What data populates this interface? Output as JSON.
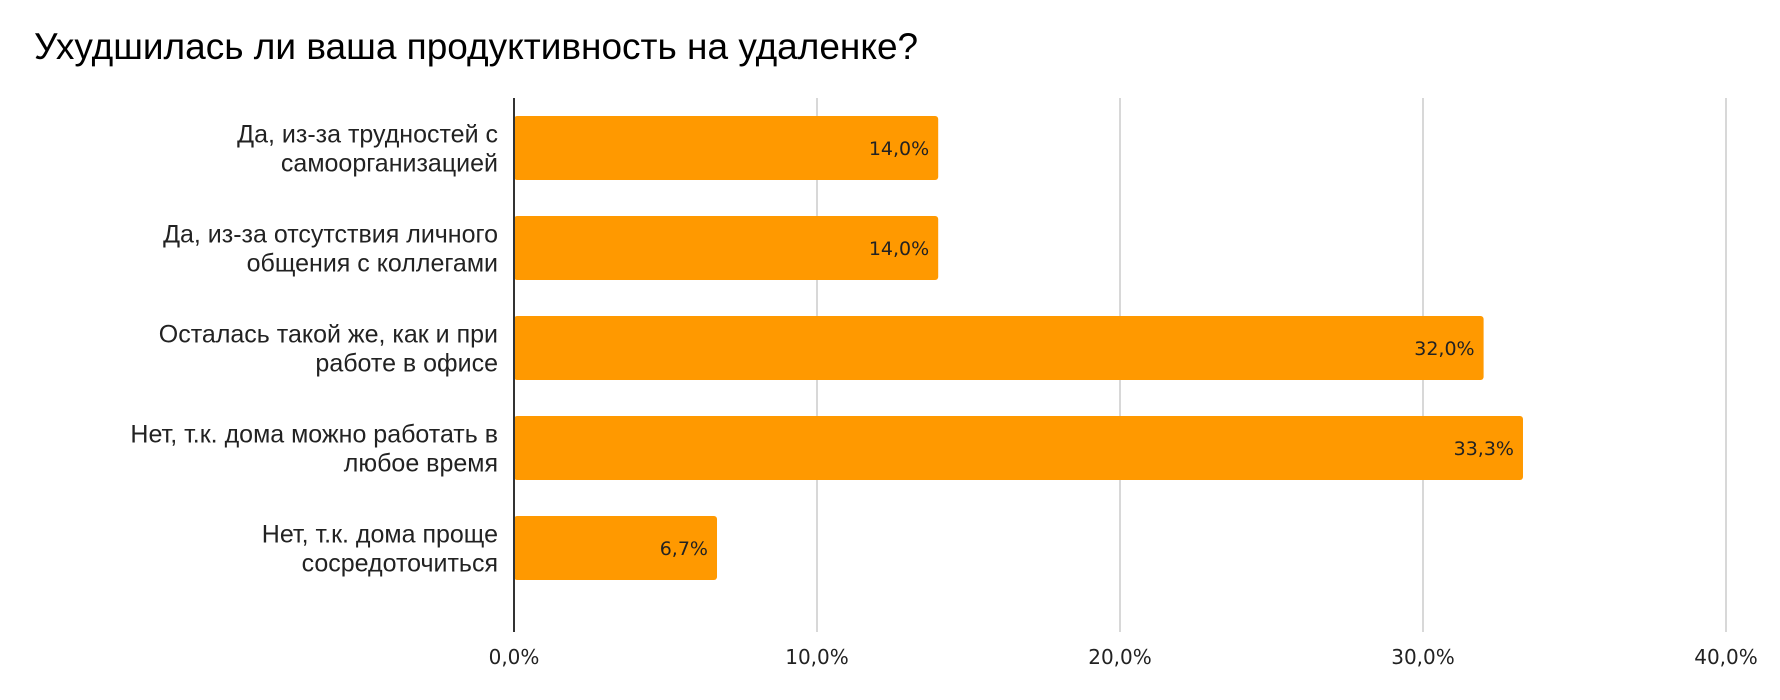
{
  "chart_data": {
    "type": "bar",
    "orientation": "horizontal",
    "title": "Ухудшилась ли ваша продуктивность на удаленке?",
    "categories": [
      [
        "Да, из-за трудностей с",
        "самоорганизацией"
      ],
      [
        "Да, из-за отсутствия личного",
        "общения с коллегами"
      ],
      [
        "Осталась такой же, как и при",
        "работе в офисе"
      ],
      [
        "Нет, т.к. дома можно работать в",
        "любое время"
      ],
      [
        "Нет, т.к. дома проще",
        "сосредоточиться"
      ]
    ],
    "values": [
      14.0,
      14.0,
      32.0,
      33.3,
      6.7
    ],
    "data_labels": [
      "14,0%",
      "14,0%",
      "32,0%",
      "33,3%",
      "6,7%"
    ],
    "xlim": [
      0,
      40
    ],
    "ticks": [
      0,
      10,
      20,
      30,
      40
    ],
    "tick_labels": [
      "0,0%",
      "10,0%",
      "20,0%",
      "30,0%",
      "40,0%"
    ],
    "grid": true,
    "legend": false,
    "colors": {
      "bar": "#ff9900",
      "grid": "#cccccc",
      "axis": "#333333"
    }
  }
}
